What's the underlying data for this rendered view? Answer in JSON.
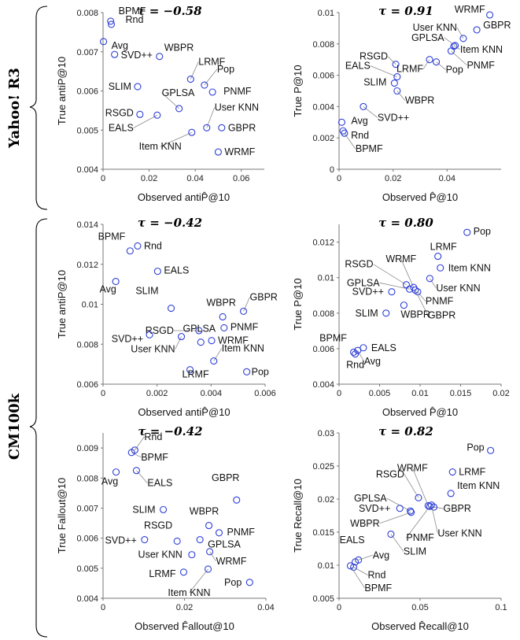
{
  "figure": {
    "groups": [
      {
        "label": "Yahoo! R3"
      },
      {
        "label": "CM100k"
      }
    ]
  },
  "chart_data": [
    {
      "type": "scatter",
      "tau": "τ = −0.58",
      "xlabel": "Observed antiP̂@10",
      "ylabel": "True antiP@10",
      "xlim": [
        0,
        0.07
      ],
      "ylim": [
        0.004,
        0.008
      ],
      "xticks": [
        0,
        0.02,
        0.04,
        0.06
      ],
      "xtick_labels": [
        "0",
        "0.02",
        "0.04",
        "0.06"
      ],
      "yticks": [
        0.004,
        0.005,
        0.006,
        0.007,
        0.008
      ],
      "ytick_labels": [
        "0.004",
        "0.005",
        "0.006",
        "0.007",
        "0.008"
      ],
      "points": [
        {
          "label": "BPMF",
          "x": 0.0033,
          "y": 0.00778
        },
        {
          "label": "Rnd",
          "x": 0.0036,
          "y": 0.0077
        },
        {
          "label": "Avg",
          "x": 0.0002,
          "y": 0.00726
        },
        {
          "label": "SVD++",
          "x": 0.005,
          "y": 0.00693
        },
        {
          "label": "WBPR",
          "x": 0.0245,
          "y": 0.00688
        },
        {
          "label": "LRMF",
          "x": 0.038,
          "y": 0.0063
        },
        {
          "label": "Pop",
          "x": 0.044,
          "y": 0.00615
        },
        {
          "label": "SLIM",
          "x": 0.015,
          "y": 0.00611
        },
        {
          "label": "PNMF",
          "x": 0.0475,
          "y": 0.00597
        },
        {
          "label": "GPLSA",
          "x": 0.033,
          "y": 0.00555
        },
        {
          "label": "RSGD",
          "x": 0.016,
          "y": 0.0054
        },
        {
          "label": "EALS",
          "x": 0.0235,
          "y": 0.00538
        },
        {
          "label": "User KNN",
          "x": 0.045,
          "y": 0.00506
        },
        {
          "label": "GBPR",
          "x": 0.0515,
          "y": 0.00506
        },
        {
          "label": "Item KNN",
          "x": 0.0385,
          "y": 0.00494
        },
        {
          "label": "WRMF",
          "x": 0.05,
          "y": 0.00444
        }
      ]
    },
    {
      "type": "scatter",
      "tau": "τ = 0.91",
      "xlabel": "Observed P̂@10",
      "ylabel": "True P@10",
      "xlim": [
        0,
        0.06
      ],
      "ylim": [
        0,
        0.01
      ],
      "xticks": [
        0,
        0.02,
        0.04
      ],
      "xtick_labels": [
        "0",
        "0.02",
        "0.04"
      ],
      "yticks": [
        0,
        0.002,
        0.004,
        0.006,
        0.008,
        0.01
      ],
      "ytick_labels": [
        "0",
        "0.002",
        "0.004",
        "0.006",
        "0.008",
        "0.01"
      ],
      "points": [
        {
          "label": "WRMF",
          "x": 0.0558,
          "y": 0.00985
        },
        {
          "label": "User KNN",
          "x": 0.046,
          "y": 0.00835
        },
        {
          "label": "GBPR",
          "x": 0.051,
          "y": 0.0089
        },
        {
          "label": "GPLSA",
          "x": 0.043,
          "y": 0.0079
        },
        {
          "label": "Item KNN",
          "x": 0.0425,
          "y": 0.00785
        },
        {
          "label": "RSGD",
          "x": 0.021,
          "y": 0.0067
        },
        {
          "label": "PNMF",
          "x": 0.0415,
          "y": 0.00755
        },
        {
          "label": "LRMF",
          "x": 0.0335,
          "y": 0.007
        },
        {
          "label": "Pop",
          "x": 0.036,
          "y": 0.00685
        },
        {
          "label": "EALS",
          "x": 0.0215,
          "y": 0.0059
        },
        {
          "label": "SLIM",
          "x": 0.0205,
          "y": 0.0055
        },
        {
          "label": "WBPR",
          "x": 0.0215,
          "y": 0.005
        },
        {
          "label": "SVD++",
          "x": 0.009,
          "y": 0.004
        },
        {
          "label": "Avg",
          "x": 0.001,
          "y": 0.003
        },
        {
          "label": "Rnd",
          "x": 0.0015,
          "y": 0.00245
        },
        {
          "label": "BPMF",
          "x": 0.002,
          "y": 0.0023
        }
      ]
    },
    {
      "type": "scatter",
      "tau": "τ = −0.42",
      "xlabel": "Observed antiP̂@10",
      "ylabel": "True antiP@10",
      "xlim": [
        0,
        0.006
      ],
      "ylim": [
        0.006,
        0.014
      ],
      "xticks": [
        0,
        0.002,
        0.004,
        0.006
      ],
      "xtick_labels": [
        "0",
        "0.002",
        "0.004",
        "0.006"
      ],
      "yticks": [
        0.006,
        0.008,
        0.01,
        0.012,
        0.014
      ],
      "ytick_labels": [
        "0.006",
        "0.008",
        "0.01",
        "0.012",
        "0.014"
      ],
      "points": [
        {
          "label": "BPMF",
          "x": 0.001,
          "y": 0.01267
        },
        {
          "label": "Rnd",
          "x": 0.00128,
          "y": 0.01292
        },
        {
          "label": "EALS",
          "x": 0.00202,
          "y": 0.01165
        },
        {
          "label": "Avg",
          "x": 0.00047,
          "y": 0.01114
        },
        {
          "label": "SLIM",
          "x": 0.00252,
          "y": 0.0098
        },
        {
          "label": "WBPR",
          "x": 0.00443,
          "y": 0.00937
        },
        {
          "label": "GBPR",
          "x": 0.0052,
          "y": 0.00965
        },
        {
          "label": "RSGD",
          "x": 0.00355,
          "y": 0.00868
        },
        {
          "label": "GPLSA",
          "x": 0.00362,
          "y": 0.0081
        },
        {
          "label": "SVD++",
          "x": 0.00172,
          "y": 0.00847
        },
        {
          "label": "User KNN",
          "x": 0.0029,
          "y": 0.00838
        },
        {
          "label": "PNMF",
          "x": 0.00448,
          "y": 0.00882
        },
        {
          "label": "WRMF",
          "x": 0.00402,
          "y": 0.00818
        },
        {
          "label": "Item KNN",
          "x": 0.0041,
          "y": 0.00716
        },
        {
          "label": "LRMF",
          "x": 0.00322,
          "y": 0.00672
        },
        {
          "label": "Pop",
          "x": 0.00532,
          "y": 0.00662
        }
      ]
    },
    {
      "type": "scatter",
      "tau": "τ = 0.80",
      "xlabel": "Observed P̂@10",
      "ylabel": "True P@10",
      "xlim": [
        0,
        0.02
      ],
      "ylim": [
        0.004,
        0.013
      ],
      "xticks": [
        0,
        0.005,
        0.01,
        0.015,
        0.02
      ],
      "xtick_labels": [
        "0",
        "0.005",
        "0.01",
        "0.015",
        "0.02"
      ],
      "yticks": [
        0.004,
        0.006,
        0.008,
        0.01,
        0.012
      ],
      "ytick_labels": [
        "0.004",
        "0.006",
        "0.008",
        "0.01",
        "0.012"
      ],
      "points": [
        {
          "label": "Pop",
          "x": 0.0158,
          "y": 0.01255
        },
        {
          "label": "LRMF",
          "x": 0.0122,
          "y": 0.0112
        },
        {
          "label": "Item KNN",
          "x": 0.0125,
          "y": 0.01055
        },
        {
          "label": "User KNN",
          "x": 0.0112,
          "y": 0.00995
        },
        {
          "label": "WRMF",
          "x": 0.0092,
          "y": 0.00945
        },
        {
          "label": "RSGD",
          "x": 0.0083,
          "y": 0.0096
        },
        {
          "label": "GPLSA",
          "x": 0.0087,
          "y": 0.00935
        },
        {
          "label": "SVD++",
          "x": 0.0065,
          "y": 0.0092
        },
        {
          "label": "PNMF",
          "x": 0.0097,
          "y": 0.0092
        },
        {
          "label": "GBPR",
          "x": 0.0094,
          "y": 0.0093
        },
        {
          "label": "SLIM",
          "x": 0.0058,
          "y": 0.008
        },
        {
          "label": "WBPR",
          "x": 0.008,
          "y": 0.00845
        },
        {
          "label": "BPMF",
          "x": 0.0018,
          "y": 0.0058
        },
        {
          "label": "EALS",
          "x": 0.003,
          "y": 0.00605
        },
        {
          "label": "Avg",
          "x": 0.0023,
          "y": 0.0059
        },
        {
          "label": "Rnd",
          "x": 0.002,
          "y": 0.0057
        }
      ]
    },
    {
      "type": "scatter",
      "tau": "τ = −0.42",
      "xlabel": "Observed F̂allout@10",
      "ylabel": "True Fallout@10",
      "xlim": [
        0,
        0.04
      ],
      "ylim": [
        0.004,
        0.0095
      ],
      "xticks": [
        0,
        0.02,
        0.04
      ],
      "xtick_labels": [
        "0",
        "0.02",
        "0.04"
      ],
      "yticks": [
        0.004,
        0.005,
        0.006,
        0.007,
        0.008,
        0.009
      ],
      "ytick_labels": [
        "0.004",
        "0.005",
        "0.006",
        "0.007",
        "0.008",
        "0.009"
      ],
      "points": [
        {
          "label": "Rnd",
          "x": 0.0078,
          "y": 0.00893
        },
        {
          "label": "BPMF",
          "x": 0.007,
          "y": 0.00885
        },
        {
          "label": "Avg",
          "x": 0.0032,
          "y": 0.0082
        },
        {
          "label": "EALS",
          "x": 0.0082,
          "y": 0.00825
        },
        {
          "label": "GBPR",
          "x": 0.0328,
          "y": 0.00727
        },
        {
          "label": "SLIM",
          "x": 0.0148,
          "y": 0.00695
        },
        {
          "label": "WBPR",
          "x": 0.026,
          "y": 0.00642
        },
        {
          "label": "PNMF",
          "x": 0.0285,
          "y": 0.00618
        },
        {
          "label": "RSGD",
          "x": 0.0182,
          "y": 0.0059
        },
        {
          "label": "SVD++",
          "x": 0.0102,
          "y": 0.00595
        },
        {
          "label": "GPLSA",
          "x": 0.0238,
          "y": 0.00595
        },
        {
          "label": "User KNN",
          "x": 0.0218,
          "y": 0.00545
        },
        {
          "label": "WRMF",
          "x": 0.0262,
          "y": 0.00555
        },
        {
          "label": "LRMF",
          "x": 0.0198,
          "y": 0.00487
        },
        {
          "label": "Item KNN",
          "x": 0.0258,
          "y": 0.00497
        },
        {
          "label": "Pop",
          "x": 0.036,
          "y": 0.00453
        }
      ]
    },
    {
      "type": "scatter",
      "tau": "τ = 0.82",
      "xlabel": "Observed R̂ecall@10",
      "ylabel": "True Recall@10",
      "xlim": [
        0,
        0.1
      ],
      "ylim": [
        0.005,
        0.03
      ],
      "xticks": [
        0,
        0.05,
        0.1
      ],
      "xtick_labels": [
        "0",
        "0.05",
        "0.1"
      ],
      "yticks": [
        0.005,
        0.01,
        0.015,
        0.02,
        0.025,
        0.03
      ],
      "ytick_labels": [
        "0.005",
        "0.01",
        "0.015",
        "0.02",
        "0.025",
        "0.03"
      ],
      "points": [
        {
          "label": "Pop",
          "x": 0.0935,
          "y": 0.02735
        },
        {
          "label": "LRMF",
          "x": 0.07,
          "y": 0.0241
        },
        {
          "label": "Item KNN",
          "x": 0.069,
          "y": 0.02085
        },
        {
          "label": "WRMF",
          "x": 0.055,
          "y": 0.019
        },
        {
          "label": "RSGD",
          "x": 0.049,
          "y": 0.0202
        },
        {
          "label": "GPLSA",
          "x": 0.044,
          "y": 0.0182
        },
        {
          "label": "GBPR",
          "x": 0.0585,
          "y": 0.0188
        },
        {
          "label": "SVD++",
          "x": 0.0375,
          "y": 0.0186
        },
        {
          "label": "User KNN",
          "x": 0.057,
          "y": 0.0191
        },
        {
          "label": "WBPR",
          "x": 0.0445,
          "y": 0.018
        },
        {
          "label": "PNMF",
          "x": 0.056,
          "y": 0.0189
        },
        {
          "label": "SLIM",
          "x": 0.032,
          "y": 0.0147
        },
        {
          "label": "EALS",
          "x": 0.01,
          "y": 0.0105
        },
        {
          "label": "Avg",
          "x": 0.012,
          "y": 0.0108
        },
        {
          "label": "Rnd",
          "x": 0.009,
          "y": 0.0097
        },
        {
          "label": "BPMF",
          "x": 0.007,
          "y": 0.0099
        }
      ]
    }
  ]
}
